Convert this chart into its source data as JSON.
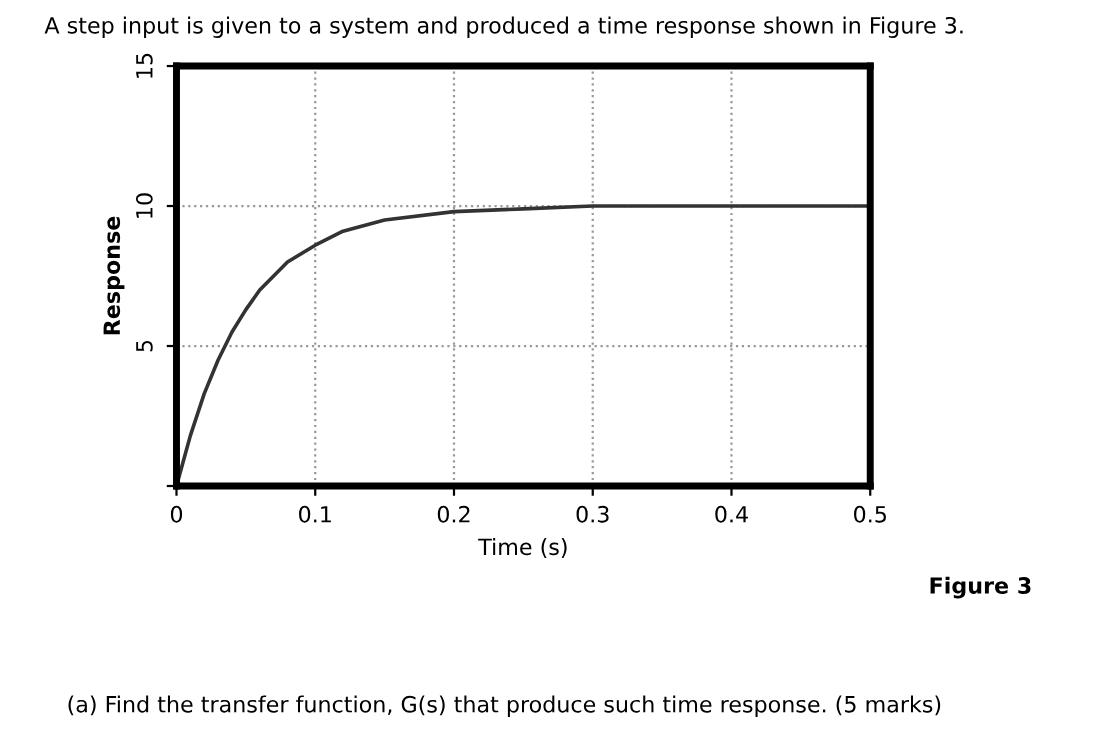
{
  "chart_data": {
    "type": "line",
    "title": "A step input is given to a system and produced a time response shown in Figure 3.",
    "xlabel": "Time (s)",
    "ylabel": "Response",
    "x": [
      0,
      0.005,
      0.01,
      0.02,
      0.03,
      0.04,
      0.05,
      0.06,
      0.08,
      0.1,
      0.12,
      0.15,
      0.2,
      0.25,
      0.3,
      0.4,
      0.5
    ],
    "series": [
      {
        "color": "#333333",
        "values": [
          0,
          0.9,
          1.8,
          3.3,
          4.5,
          5.5,
          6.3,
          7.0,
          8.0,
          8.6,
          9.1,
          9.5,
          9.8,
          9.9,
          10,
          10,
          10
        ]
      }
    ],
    "xlim": [
      0,
      0.5
    ],
    "xticks": [
      0,
      0.1,
      0.2,
      0.3,
      0.4,
      0.5
    ],
    "ylim": [
      0,
      15
    ],
    "yticks": [
      {
        "value": 0,
        "label": null
      },
      5,
      10,
      15
    ],
    "grid": true,
    "line_style": "solid",
    "annotations": [
      "Figure 3",
      "(a) Find the transfer function, G(s) that produce such time response. (5 marks)"
    ]
  }
}
